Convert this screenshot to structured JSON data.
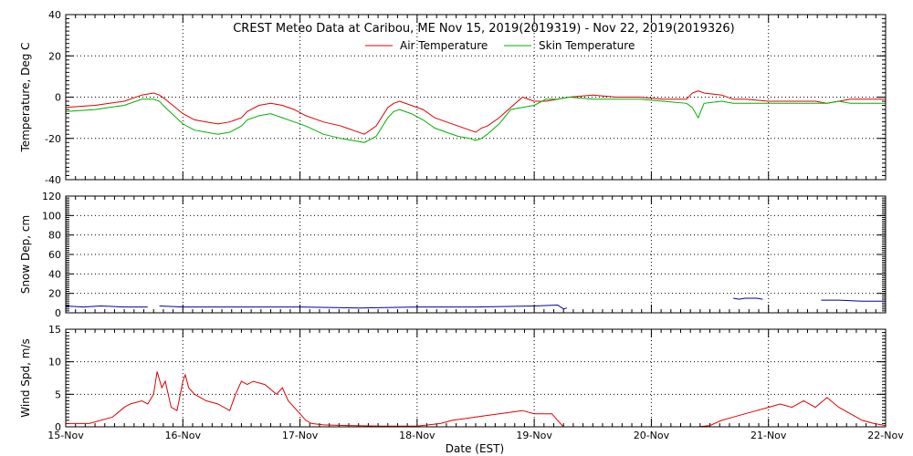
{
  "chart_data": {
    "title": "CREST Meteo Data at Caribou, ME   Nov 15, 2019(2019319) - Nov 22, 2019(2019326)",
    "xlabel": "Date (EST)",
    "x_ticks": [
      "15-Nov",
      "16-Nov",
      "17-Nov",
      "18-Nov",
      "19-Nov",
      "20-Nov",
      "21-Nov",
      "22-Nov"
    ],
    "xlim": [
      0,
      7
    ],
    "colors": {
      "air": "#e00000",
      "skin": "#00b000",
      "snow": "#0000a0",
      "wind": "#e00000"
    },
    "panels": [
      {
        "type": "line",
        "ylabel": "Temperature, Deg C",
        "ylim": [
          -40,
          40
        ],
        "y_ticks": [
          -40,
          -20,
          0,
          20,
          40
        ],
        "legend_position": "top-center",
        "series": [
          {
            "name": "Air Temperature",
            "color_key": "air",
            "x": [
              0,
              0.25,
              0.5,
              0.65,
              0.75,
              0.8,
              0.85,
              1.0,
              1.1,
              1.2,
              1.3,
              1.4,
              1.5,
              1.55,
              1.65,
              1.75,
              1.85,
              1.95,
              2.05,
              2.2,
              2.35,
              2.45,
              2.55,
              2.65,
              2.75,
              2.8,
              2.85,
              2.95,
              3.05,
              3.15,
              3.25,
              3.35,
              3.45,
              3.5,
              3.55,
              3.6,
              3.7,
              3.8,
              3.9,
              4.0,
              4.1,
              4.2,
              4.3,
              4.5,
              4.7,
              4.9,
              5.1,
              5.3,
              5.35,
              5.4,
              5.45,
              5.6,
              5.7,
              5.8,
              6.0,
              6.2,
              6.4,
              6.5,
              6.6,
              6.7,
              6.8,
              6.9,
              7.0
            ],
            "y": [
              -5,
              -4,
              -2,
              1,
              2,
              1,
              -1,
              -8,
              -11,
              -12,
              -13,
              -12,
              -10,
              -7,
              -4,
              -3,
              -4,
              -6,
              -9,
              -12,
              -14,
              -16,
              -18,
              -14,
              -5,
              -3,
              -2,
              -4,
              -6,
              -10,
              -12,
              -14,
              -16,
              -17,
              -15,
              -14,
              -10,
              -5,
              0,
              -2,
              -2,
              -1,
              0,
              1,
              0,
              0,
              -1,
              -1,
              2,
              3,
              2,
              1,
              -1,
              -1,
              -2,
              -2,
              -2,
              -3,
              -2,
              -1,
              -1,
              -1,
              -1
            ]
          },
          {
            "name": "Skin Temperature",
            "color_key": "skin",
            "x": [
              0,
              0.25,
              0.5,
              0.65,
              0.75,
              0.8,
              0.85,
              1.0,
              1.1,
              1.2,
              1.3,
              1.4,
              1.5,
              1.55,
              1.65,
              1.75,
              1.85,
              1.95,
              2.05,
              2.2,
              2.35,
              2.45,
              2.55,
              2.65,
              2.75,
              2.8,
              2.85,
              2.95,
              3.05,
              3.15,
              3.25,
              3.35,
              3.45,
              3.5,
              3.55,
              3.6,
              3.7,
              3.8,
              3.9,
              4.0,
              4.1,
              4.2,
              4.3,
              4.5,
              4.7,
              4.9,
              5.1,
              5.3,
              5.35,
              5.4,
              5.45,
              5.6,
              5.7,
              5.8,
              6.0,
              6.2,
              6.4,
              6.5,
              6.6,
              6.7,
              6.8,
              6.9,
              7.0
            ],
            "y": [
              -7,
              -6,
              -4,
              -1,
              -1,
              -2,
              -5,
              -13,
              -16,
              -17,
              -18,
              -17,
              -14,
              -11,
              -9,
              -8,
              -10,
              -12,
              -14,
              -18,
              -20,
              -21,
              -22,
              -19,
              -10,
              -7,
              -6,
              -8,
              -11,
              -15,
              -17,
              -19,
              -20,
              -21,
              -20,
              -18,
              -13,
              -6,
              -5,
              -4,
              -1,
              -1,
              0,
              -1,
              -1,
              -1,
              -2,
              -3,
              -5,
              -10,
              -3,
              -2,
              -3,
              -3,
              -3,
              -3,
              -3,
              -3,
              -2,
              -3,
              -3,
              -3,
              -3
            ]
          }
        ]
      },
      {
        "type": "line",
        "ylabel": "Snow Dep, cm",
        "ylim": [
          0,
          120
        ],
        "y_ticks": [
          0,
          20,
          40,
          60,
          80,
          100,
          120
        ],
        "segments": [
          {
            "x": [
              0.0,
              0.15,
              0.3,
              0.5,
              0.7
            ],
            "y": [
              7,
              6,
              7,
              6,
              6
            ]
          },
          {
            "x": [
              0.8,
              1.0,
              1.5,
              2.0,
              2.5,
              3.0,
              3.5,
              4.0,
              4.2,
              4.25,
              4.28
            ],
            "y": [
              7,
              6,
              6,
              6,
              5,
              6,
              6,
              7,
              8,
              4,
              5
            ]
          },
          {
            "x": [
              5.7,
              5.75,
              5.8,
              5.9,
              5.95
            ],
            "y": [
              15,
              14,
              15,
              15,
              14
            ]
          },
          {
            "x": [
              6.45,
              6.6,
              6.8,
              6.9,
              7.0
            ],
            "y": [
              13,
              13,
              12,
              12,
              12
            ]
          }
        ]
      },
      {
        "type": "line",
        "ylabel": "Wind Spd, m/s",
        "ylim": [
          0,
          15
        ],
        "y_ticks": [
          0,
          5,
          10,
          15
        ],
        "segments": [
          {
            "x": [
              0,
              0.2,
              0.4,
              0.5,
              0.55,
              0.65,
              0.7,
              0.75,
              0.78,
              0.82,
              0.85,
              0.9,
              0.95,
              1.0,
              1.02,
              1.05,
              1.1,
              1.2,
              1.3,
              1.4,
              1.45,
              1.5,
              1.55,
              1.6,
              1.7,
              1.8,
              1.85,
              1.9,
              2.0,
              2.05,
              2.1,
              2.2,
              2.4,
              2.7,
              3.0,
              3.2,
              3.3,
              3.5,
              3.7,
              3.9,
              4.0,
              4.05,
              4.1,
              4.15,
              4.2,
              4.25,
              4.3,
              4.35,
              4.4,
              4.5,
              4.6,
              4.7,
              4.8,
              4.9,
              5.0,
              5.1,
              5.2,
              5.3,
              5.4,
              5.5,
              5.6,
              5.7,
              5.8,
              5.9,
              6.0,
              6.1,
              6.2,
              6.3,
              6.4,
              6.5,
              6.6,
              6.7,
              6.8,
              6.9,
              7.0
            ],
            "y": [
              0.5,
              0.5,
              1.5,
              3,
              3.5,
              4,
              3.5,
              5,
              8.5,
              6,
              7,
              3,
              2.5,
              7,
              8,
              6,
              5,
              4,
              3.5,
              2.5,
              5,
              7,
              6.5,
              7,
              6.5,
              5,
              6,
              4,
              2,
              1,
              0.5,
              0.3,
              0.2,
              0.1,
              0.1,
              0.5,
              1,
              1.5,
              2,
              2.5,
              2,
              2,
              2,
              2,
              1,
              0,
              0,
              0,
              0,
              0,
              0,
              0,
              0,
              0,
              0,
              0,
              0,
              0,
              0,
              0.2,
              1,
              1.5,
              2,
              2.5,
              3,
              3.5,
              3,
              4,
              3,
              4.5,
              3,
              2,
              1,
              0.5,
              0.2
            ]
          }
        ]
      }
    ]
  }
}
